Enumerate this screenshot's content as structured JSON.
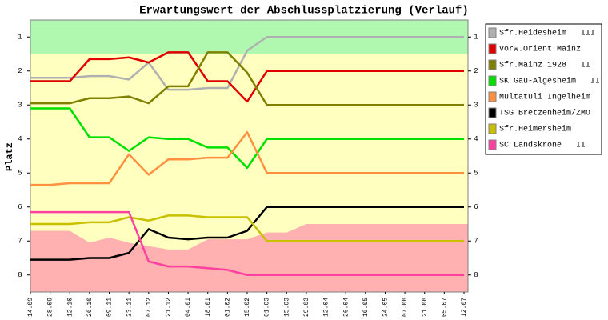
{
  "chart_data": {
    "type": "line",
    "title": "Erwartungswert der Abschlussplatzierung (Verlauf)",
    "y_label": "Platz",
    "categories": [
      "14.09",
      "28.09",
      "12.10",
      "26.10",
      "09.11",
      "23.11",
      "07.12",
      "21.12",
      "04.01",
      "18.01",
      "01.02",
      "15.02",
      "01.03",
      "15.03",
      "29.03",
      "12.04",
      "26.04",
      "10.05",
      "24.05",
      "07.06",
      "21.06",
      "05.07",
      "12.07"
    ],
    "ylim": [
      8.5,
      0.5
    ],
    "yticks": [
      1,
      2,
      3,
      4,
      5,
      6,
      7,
      8
    ],
    "background_color": "#ffffc0",
    "promotion_band": [
      0.5,
      1.5
    ],
    "promotion_color": "#b0f8b0",
    "relegation_boundary": [
      6.7,
      6.7,
      6.7,
      7.05,
      6.9,
      7.05,
      7.15,
      7.25,
      7.25,
      6.95,
      6.95,
      6.95,
      6.75,
      6.75,
      6.5,
      6.5,
      6.5,
      6.5,
      6.5,
      6.5,
      6.5,
      6.5,
      6.5
    ],
    "relegation_color": "#ffb0b0",
    "legend": "right",
    "series": [
      {
        "name": "Sfr.Heidesheim   III",
        "color": "#b0b0b0",
        "values": [
          2.2,
          2.2,
          2.2,
          2.15,
          2.15,
          2.25,
          1.75,
          2.55,
          2.55,
          2.5,
          2.5,
          1.4,
          1,
          1,
          1,
          1,
          1,
          1,
          1,
          1,
          1,
          1,
          1
        ]
      },
      {
        "name": "Vorw.Orient Mainz",
        "color": "#e00000",
        "values": [
          2.3,
          2.3,
          2.3,
          1.65,
          1.65,
          1.6,
          1.75,
          1.45,
          1.45,
          2.3,
          2.3,
          2.9,
          2,
          2,
          2,
          2,
          2,
          2,
          2,
          2,
          2,
          2,
          2
        ]
      },
      {
        "name": "Sfr.Mainz 1928   II",
        "color": "#808000",
        "values": [
          2.95,
          2.95,
          2.95,
          2.8,
          2.8,
          2.75,
          2.95,
          2.45,
          2.45,
          1.45,
          1.45,
          2.05,
          3,
          3,
          3,
          3,
          3,
          3,
          3,
          3,
          3,
          3,
          3
        ]
      },
      {
        "name": "SK Gau-Algesheim   II",
        "color": "#00e000",
        "values": [
          3.1,
          3.1,
          3.1,
          3.95,
          3.95,
          4.35,
          3.95,
          4,
          4,
          4.25,
          4.25,
          4.85,
          4,
          4,
          4,
          4,
          4,
          4,
          4,
          4,
          4,
          4,
          4
        ]
      },
      {
        "name": "Multatuli Ingelheim",
        "color": "#ff9040",
        "values": [
          5.35,
          5.35,
          5.3,
          5.3,
          5.3,
          4.45,
          5.05,
          4.6,
          4.6,
          4.55,
          4.55,
          3.8,
          5,
          5,
          5,
          5,
          5,
          5,
          5,
          5,
          5,
          5,
          5
        ]
      },
      {
        "name": "TSG Bretzenheim/ZMO",
        "color": "#000000",
        "values": [
          7.55,
          7.55,
          7.55,
          7.5,
          7.5,
          7.35,
          6.65,
          6.9,
          6.95,
          6.9,
          6.9,
          6.7,
          6,
          6,
          6,
          6,
          6,
          6,
          6,
          6,
          6,
          6,
          6
        ]
      },
      {
        "name": "Sfr.Heimersheim",
        "color": "#c8c000",
        "values": [
          6.5,
          6.5,
          6.5,
          6.45,
          6.45,
          6.3,
          6.4,
          6.25,
          6.25,
          6.3,
          6.3,
          6.3,
          7,
          7,
          7,
          7,
          7,
          7,
          7,
          7,
          7,
          7,
          7
        ]
      },
      {
        "name": "SC Landskrone   II",
        "color": "#ff40a0",
        "values": [
          6.15,
          6.15,
          6.15,
          6.15,
          6.15,
          6.15,
          7.6,
          7.75,
          7.75,
          7.8,
          7.85,
          8,
          8,
          8,
          8,
          8,
          8,
          8,
          8,
          8,
          8,
          8,
          8
        ]
      }
    ]
  }
}
